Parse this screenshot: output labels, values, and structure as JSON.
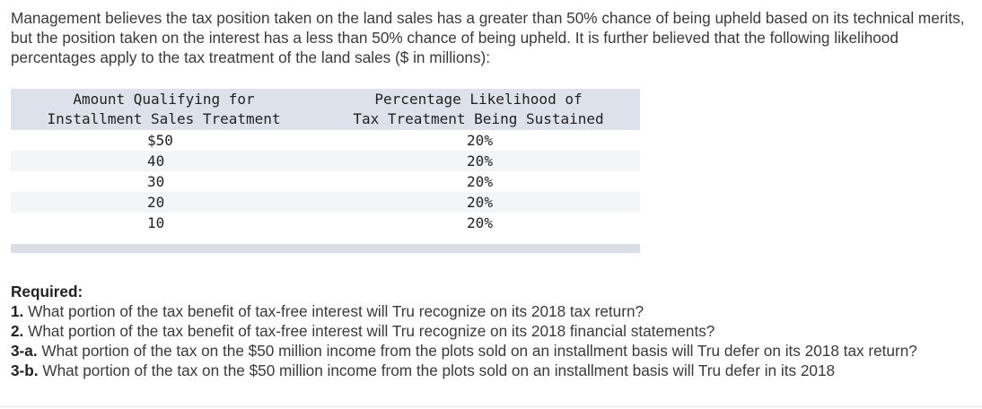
{
  "intro": "Management believes the tax position taken on the land sales has a greater than 50% chance of being upheld based on its technical merits, but the position taken on the interest has a less than 50% chance of being upheld. It is further believed that the following likelihood percentages apply to the tax treatment of the land sales ($ in millions):",
  "table": {
    "header_col1_line1": "Amount Qualifying for",
    "header_col1_line2": "Installment Sales Treatment",
    "header_col2_line1": "Percentage Likelihood of",
    "header_col2_line2": "Tax Treatment Being Sustained",
    "rows": [
      {
        "amount": "$50",
        "pct": "20%"
      },
      {
        "amount": "40",
        "pct": "20%"
      },
      {
        "amount": "30",
        "pct": "20%"
      },
      {
        "amount": "20",
        "pct": "20%"
      },
      {
        "amount": "10",
        "pct": "20%"
      }
    ]
  },
  "required": {
    "heading": "Required:",
    "questions": [
      {
        "num": "1.",
        "text": "What portion of the tax benefit of tax-free interest will Tru recognize on its 2018 tax return?"
      },
      {
        "num": "2.",
        "text": "What portion of the tax benefit of tax-free interest will Tru recognize on its 2018 financial statements?"
      },
      {
        "num": "3-a.",
        "text": "What portion of the tax on the $50 million income from the plots sold on an installment basis will Tru defer on its 2018 tax return?"
      },
      {
        "num": "3-b.",
        "text": "What portion of the tax on the $50 million income from the plots sold on an installment basis will Tru defer in its 2018"
      }
    ]
  }
}
